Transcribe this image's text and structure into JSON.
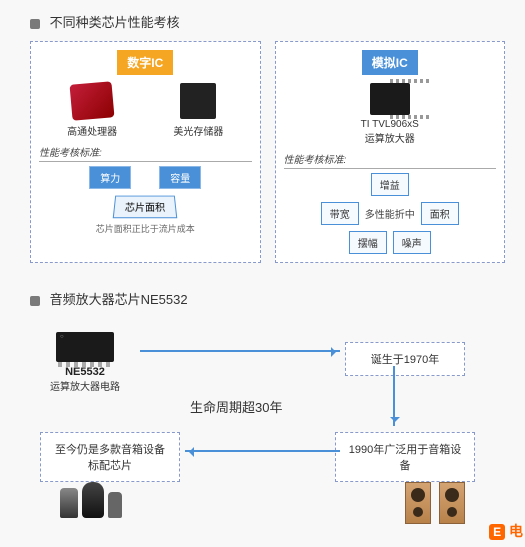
{
  "section1": {
    "title": "不同种类芯片性能考核",
    "left_panel": {
      "header": "数字IC",
      "header_color": "#f5a623",
      "chip1_label": "高通处理器",
      "chip2_label": "美光存储器",
      "perf_label": "性能考核标准:",
      "metric1": "算力",
      "metric2": "容量",
      "area_label": "芯片面积",
      "note": "芯片面积正比于流片成本"
    },
    "right_panel": {
      "header": "模拟IC",
      "header_color": "#4a90d9",
      "chip_label_line1": "TI  TVL906xS",
      "chip_label_line2": "运算放大器",
      "perf_label": "性能考核标准:",
      "m_gain": "增益",
      "m_bw": "带宽",
      "m_center": "多性能折中",
      "m_area": "面积",
      "m_swing": "摆幅",
      "m_noise": "噪声"
    }
  },
  "section2": {
    "title": "音频放大器芯片NE5532",
    "ne_label": "NE5532",
    "ne_sub": "运算放大器电路",
    "box_born": "诞生于1970年",
    "mid_text": "生命周期超30年",
    "box_1990": "1990年广泛用于音箱设备",
    "box_now": "至今仍是多款音箱设备标配芯片",
    "arrow_color": "#4a90d9"
  },
  "watermark": "电"
}
